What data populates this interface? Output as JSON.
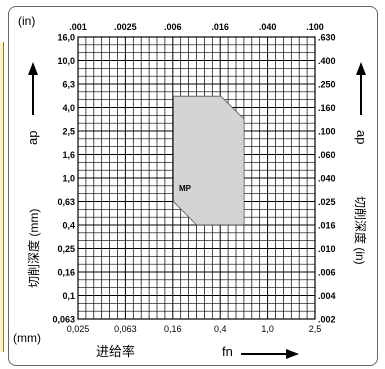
{
  "chart_data": {
    "type": "heatmap",
    "unit_top_left": "(in)",
    "unit_bottom_left": "(mm)",
    "x_axis": {
      "label_cn": "进给率",
      "label_sym": "fn",
      "scale": "log",
      "range_mm": [
        0.025,
        2.5
      ],
      "bottom_ticks_mm": [
        "0,025",
        "0,063",
        "0,16",
        "0,4",
        "1,0",
        "2,5"
      ],
      "top_ticks_in": [
        ".001",
        ".0025",
        ".006",
        ".016",
        ".040",
        ".100"
      ]
    },
    "y_axis": {
      "label_cn_left": "切削深度 (mm)",
      "label_cn_right": "切削深度 (in)",
      "label_sym": "ap",
      "scale": "log",
      "range_mm": [
        0.063,
        16.0
      ],
      "left_ticks_mm": [
        "16,0",
        "10,0",
        "6,3",
        "4,0",
        "2,5",
        "1,6",
        "1,0",
        "0,63",
        "0,4",
        "0,25",
        "0,16",
        "0,1",
        "0,063"
      ],
      "right_ticks_in": [
        ".630",
        ".400",
        ".250",
        ".160",
        ".100",
        ".060",
        ".040",
        ".025",
        ".016",
        ".010",
        ".006",
        ".004",
        ".002"
      ]
    },
    "region": {
      "label": "MP",
      "fill": "#d4d4d4",
      "polygon_mm": [
        [
          0.16,
          5.0
        ],
        [
          0.4,
          5.0
        ],
        [
          0.63,
          3.2
        ],
        [
          0.63,
          0.4
        ],
        [
          0.25,
          0.4
        ],
        [
          0.16,
          0.63
        ]
      ]
    },
    "grid": true
  },
  "colors": {
    "frame": "#666666",
    "grid": "#000000",
    "arrow": "#000000",
    "region_fill": "#d4d4d4",
    "left_strip": "#fdf3c4"
  }
}
